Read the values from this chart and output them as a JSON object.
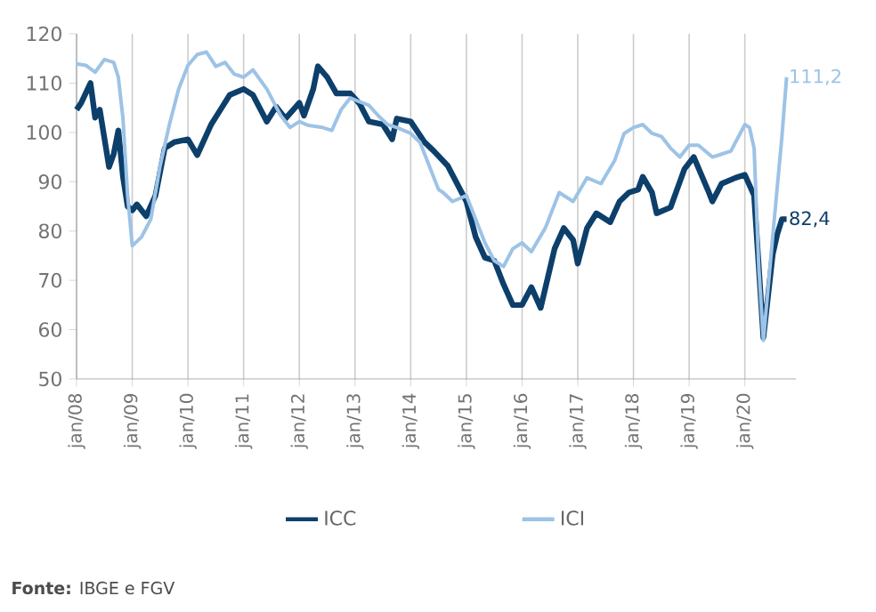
{
  "chart_data": {
    "type": "line",
    "x": [
      "2008-01",
      "2008-02",
      "2008-04",
      "2008-05",
      "2008-06",
      "2008-08",
      "2008-09",
      "2008-10",
      "2008-11",
      "2008-12",
      "2009-01",
      "2009-02",
      "2009-04",
      "2009-06",
      "2009-08",
      "2009-10",
      "2010-01",
      "2010-03",
      "2010-06",
      "2010-08",
      "2010-10",
      "2011-01",
      "2011-03",
      "2011-06",
      "2011-08",
      "2011-10",
      "2012-01",
      "2012-02",
      "2012-04",
      "2012-05",
      "2012-07",
      "2012-09",
      "2012-12",
      "2013-02",
      "2013-04",
      "2013-07",
      "2013-09",
      "2013-10",
      "2014-01",
      "2014-04",
      "2014-06",
      "2014-09",
      "2014-10",
      "2015-01",
      "2015-03",
      "2015-05",
      "2015-07",
      "2015-09",
      "2015-11",
      "2016-01",
      "2016-03",
      "2016-05",
      "2016-08",
      "2016-10",
      "2016-12",
      "2017-01",
      "2017-03",
      "2017-05",
      "2017-08",
      "2017-10",
      "2017-12",
      "2018-02",
      "2018-03",
      "2018-05",
      "2018-06",
      "2018-09",
      "2018-12",
      "2019-02",
      "2019-05",
      "2019-06",
      "2019-08",
      "2019-11",
      "2020-01",
      "2020-03",
      "2020-05",
      "2020-07",
      "2020-08",
      "2020-09",
      "2020-10"
    ],
    "series": [
      {
        "name": "ICC",
        "color": "#0d3f6b",
        "values": [
          104.6,
          106,
          110,
          103,
          104.6,
          93,
          95.6,
          100.4,
          91,
          85,
          84.2,
          85.4,
          83,
          87.2,
          96.8,
          98,
          98.6,
          95.4,
          101.6,
          104.6,
          107.6,
          108.8,
          107.6,
          102.2,
          105.2,
          102.8,
          106,
          103.4,
          108.8,
          113.4,
          111.2,
          107.9,
          107.9,
          105.8,
          102.2,
          101.6,
          98.6,
          102.8,
          102.2,
          98,
          96.2,
          93.2,
          91.4,
          86,
          78.8,
          74.6,
          74,
          69.2,
          65,
          65,
          68.6,
          64.4,
          76.4,
          80.6,
          78.2,
          73.4,
          80.6,
          83.6,
          81.8,
          86,
          87.8,
          88.4,
          91,
          87.8,
          83.6,
          84.8,
          92.6,
          95,
          88.4,
          86,
          89.6,
          90.8,
          91.4,
          87.2,
          58.4,
          75.2,
          79.4,
          82.4,
          82.4
        ]
      },
      {
        "name": "ICI",
        "color": "#9dc3e6",
        "x": [
          "2008-01",
          "2008-03",
          "2008-05",
          "2008-07",
          "2008-09",
          "2008-10",
          "2008-11",
          "2008-12",
          "2009-01",
          "2009-03",
          "2009-05",
          "2009-07",
          "2009-09",
          "2009-11",
          "2010-01",
          "2010-03",
          "2010-05",
          "2010-07",
          "2010-09",
          "2010-11",
          "2011-01",
          "2011-03",
          "2011-06",
          "2011-09",
          "2011-11",
          "2012-01",
          "2012-03",
          "2012-06",
          "2012-08",
          "2012-10",
          "2012-12",
          "2013-02",
          "2013-04",
          "2013-06",
          "2013-08",
          "2013-10",
          "2014-01",
          "2014-03",
          "2014-05",
          "2014-07",
          "2014-08",
          "2014-10",
          "2015-01",
          "2015-03",
          "2015-05",
          "2015-07",
          "2015-09",
          "2015-11",
          "2016-01",
          "2016-03",
          "2016-06",
          "2016-09",
          "2016-12",
          "2017-03",
          "2017-06",
          "2017-09",
          "2017-11",
          "2018-01",
          "2018-03",
          "2018-05",
          "2018-07",
          "2018-09",
          "2018-11",
          "2019-01",
          "2019-03",
          "2019-06",
          "2019-08",
          "2019-10",
          "2019-12",
          "2020-01",
          "2020-02",
          "2020-03",
          "2020-04",
          "2020-05",
          "2020-07",
          "2020-09",
          "2020-10"
        ],
        "values": [
          113.9,
          113.6,
          112.2,
          114.8,
          114.2,
          111.2,
          102.8,
          87.2,
          77,
          78.8,
          82.4,
          93.2,
          101.6,
          108.8,
          113.6,
          115.8,
          116.3,
          113.4,
          114.2,
          111.8,
          111.2,
          112.7,
          108.8,
          103.4,
          101,
          102.2,
          101.4,
          101,
          100.4,
          104.6,
          107,
          106.2,
          105.5,
          103.4,
          101.6,
          101,
          99.8,
          98,
          93.2,
          88.4,
          87.8,
          86,
          87.2,
          82.4,
          77.6,
          74,
          72.8,
          76.4,
          77.6,
          75.8,
          80.6,
          87.8,
          86,
          90.8,
          89.6,
          94.4,
          99.8,
          101,
          101.6,
          99.8,
          99.2,
          96.8,
          95,
          97.4,
          97.4,
          95,
          95.6,
          96.2,
          99.8,
          101.6,
          101,
          96.8,
          72.8,
          57.8,
          78.8,
          99.2,
          111.2
        ]
      }
    ],
    "xlim": [
      "2008-01",
      "2020-12"
    ],
    "xticks": [
      {
        "value": "2008-01",
        "label": "jan/08"
      },
      {
        "value": "2009-01",
        "label": "jan/09"
      },
      {
        "value": "2010-01",
        "label": "jan/10"
      },
      {
        "value": "2011-01",
        "label": "jan/11"
      },
      {
        "value": "2012-01",
        "label": "jan/12"
      },
      {
        "value": "2013-01",
        "label": "jan/13"
      },
      {
        "value": "2014-01",
        "label": "jan/14"
      },
      {
        "value": "2015-01",
        "label": "jan/15"
      },
      {
        "value": "2016-01",
        "label": "jan/16"
      },
      {
        "value": "2017-01",
        "label": "jan/17"
      },
      {
        "value": "2018-01",
        "label": "jan/18"
      },
      {
        "value": "2019-01",
        "label": "jan/19"
      },
      {
        "value": "2020-01",
        "label": "jan/20"
      }
    ],
    "ylim": [
      50,
      120
    ],
    "yticks": [
      50,
      60,
      70,
      80,
      90,
      100,
      110,
      120
    ],
    "grid": "x",
    "legend": "bottom",
    "marker": "none",
    "line_style": "solid",
    "annotations": [
      {
        "text": "82,4",
        "x": "2020-10",
        "y": 82.4
      },
      {
        "text": "111,2",
        "x": "2020-10",
        "y": 111.2
      },
      "**Fonte:** IBGE e FGV"
    ]
  }
}
